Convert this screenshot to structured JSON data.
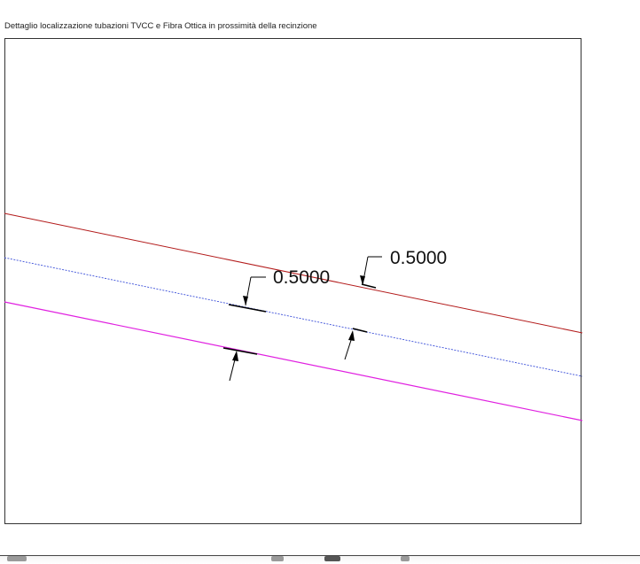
{
  "title": "Dettaglio localizzazione tubazioni TVCC e Fibra Ottica in prossimità della recinzione",
  "colors": {
    "line_top": "#b31b1b",
    "line_middle": "#3b4fd9",
    "line_bottom": "#e020e0",
    "dimension": "#000000",
    "frame": "#333333"
  },
  "dimensions": [
    {
      "label": "0.5000"
    },
    {
      "label": "0.5000"
    }
  ]
}
